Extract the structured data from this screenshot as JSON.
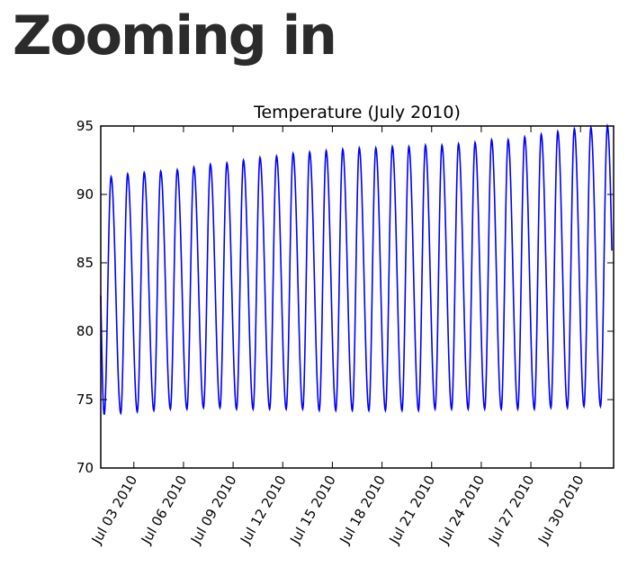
{
  "page": {
    "heading": "Zooming in"
  },
  "chart_data": {
    "type": "line",
    "title": "Temperature (July 2010)",
    "xlabel": "",
    "ylabel": "",
    "ylim": [
      70,
      95
    ],
    "yticks": [
      70,
      75,
      80,
      85,
      90,
      95
    ],
    "xlim": [
      "2010-07-01",
      "2010-08-01"
    ],
    "xticks": [
      "2010-07-03",
      "2010-07-06",
      "2010-07-09",
      "2010-07-12",
      "2010-07-15",
      "2010-07-18",
      "2010-07-21",
      "2010-07-24",
      "2010-07-27",
      "2010-07-30"
    ],
    "xtick_labels": [
      "Jul 03 2010",
      "Jul 06 2010",
      "Jul 09 2010",
      "Jul 12 2010",
      "Jul 15 2010",
      "Jul 18 2010",
      "Jul 21 2010",
      "Jul 24 2010",
      "Jul 27 2010",
      "Jul 30 2010"
    ],
    "grid": false,
    "line_color": "#0000ff",
    "series": [
      {
        "name": "",
        "daily_peaks": [
          {
            "date": "2010-07-01",
            "value": 91.3
          },
          {
            "date": "2010-07-02",
            "value": 91.5
          },
          {
            "date": "2010-07-03",
            "value": 91.6
          },
          {
            "date": "2010-07-04",
            "value": 91.7
          },
          {
            "date": "2010-07-05",
            "value": 91.8
          },
          {
            "date": "2010-07-06",
            "value": 92.0
          },
          {
            "date": "2010-07-07",
            "value": 92.2
          },
          {
            "date": "2010-07-08",
            "value": 92.3
          },
          {
            "date": "2010-07-09",
            "value": 92.5
          },
          {
            "date": "2010-07-10",
            "value": 92.7
          },
          {
            "date": "2010-07-11",
            "value": 92.8
          },
          {
            "date": "2010-07-12",
            "value": 93.0
          },
          {
            "date": "2010-07-13",
            "value": 93.1
          },
          {
            "date": "2010-07-14",
            "value": 93.2
          },
          {
            "date": "2010-07-15",
            "value": 93.3
          },
          {
            "date": "2010-07-16",
            "value": 93.4
          },
          {
            "date": "2010-07-17",
            "value": 93.4
          },
          {
            "date": "2010-07-18",
            "value": 93.5
          },
          {
            "date": "2010-07-19",
            "value": 93.5
          },
          {
            "date": "2010-07-20",
            "value": 93.6
          },
          {
            "date": "2010-07-21",
            "value": 93.6
          },
          {
            "date": "2010-07-22",
            "value": 93.7
          },
          {
            "date": "2010-07-23",
            "value": 93.8
          },
          {
            "date": "2010-07-24",
            "value": 94.0
          },
          {
            "date": "2010-07-25",
            "value": 94.0
          },
          {
            "date": "2010-07-26",
            "value": 94.2
          },
          {
            "date": "2010-07-27",
            "value": 94.4
          },
          {
            "date": "2010-07-28",
            "value": 94.6
          },
          {
            "date": "2010-07-29",
            "value": 94.8
          },
          {
            "date": "2010-07-30",
            "value": 94.9
          },
          {
            "date": "2010-07-31",
            "value": 95.0
          }
        ],
        "daily_lows": [
          {
            "date": "2010-07-01",
            "value": 73.9
          },
          {
            "date": "2010-07-02",
            "value": 74.0
          },
          {
            "date": "2010-07-03",
            "value": 74.1
          },
          {
            "date": "2010-07-04",
            "value": 74.2
          },
          {
            "date": "2010-07-05",
            "value": 74.3
          },
          {
            "date": "2010-07-06",
            "value": 74.3
          },
          {
            "date": "2010-07-07",
            "value": 74.4
          },
          {
            "date": "2010-07-08",
            "value": 74.4
          },
          {
            "date": "2010-07-09",
            "value": 74.3
          },
          {
            "date": "2010-07-10",
            "value": 74.3
          },
          {
            "date": "2010-07-11",
            "value": 74.3
          },
          {
            "date": "2010-07-12",
            "value": 74.3
          },
          {
            "date": "2010-07-13",
            "value": 74.3
          },
          {
            "date": "2010-07-14",
            "value": 74.2
          },
          {
            "date": "2010-07-15",
            "value": 74.2
          },
          {
            "date": "2010-07-16",
            "value": 74.2
          },
          {
            "date": "2010-07-17",
            "value": 74.2
          },
          {
            "date": "2010-07-18",
            "value": 74.2
          },
          {
            "date": "2010-07-19",
            "value": 74.2
          },
          {
            "date": "2010-07-20",
            "value": 74.2
          },
          {
            "date": "2010-07-21",
            "value": 74.3
          },
          {
            "date": "2010-07-22",
            "value": 74.3
          },
          {
            "date": "2010-07-23",
            "value": 74.3
          },
          {
            "date": "2010-07-24",
            "value": 74.3
          },
          {
            "date": "2010-07-25",
            "value": 74.3
          },
          {
            "date": "2010-07-26",
            "value": 74.3
          },
          {
            "date": "2010-07-27",
            "value": 74.3
          },
          {
            "date": "2010-07-28",
            "value": 74.4
          },
          {
            "date": "2010-07-29",
            "value": 74.4
          },
          {
            "date": "2010-07-30",
            "value": 74.5
          },
          {
            "date": "2010-07-31",
            "value": 74.5
          }
        ]
      }
    ]
  }
}
